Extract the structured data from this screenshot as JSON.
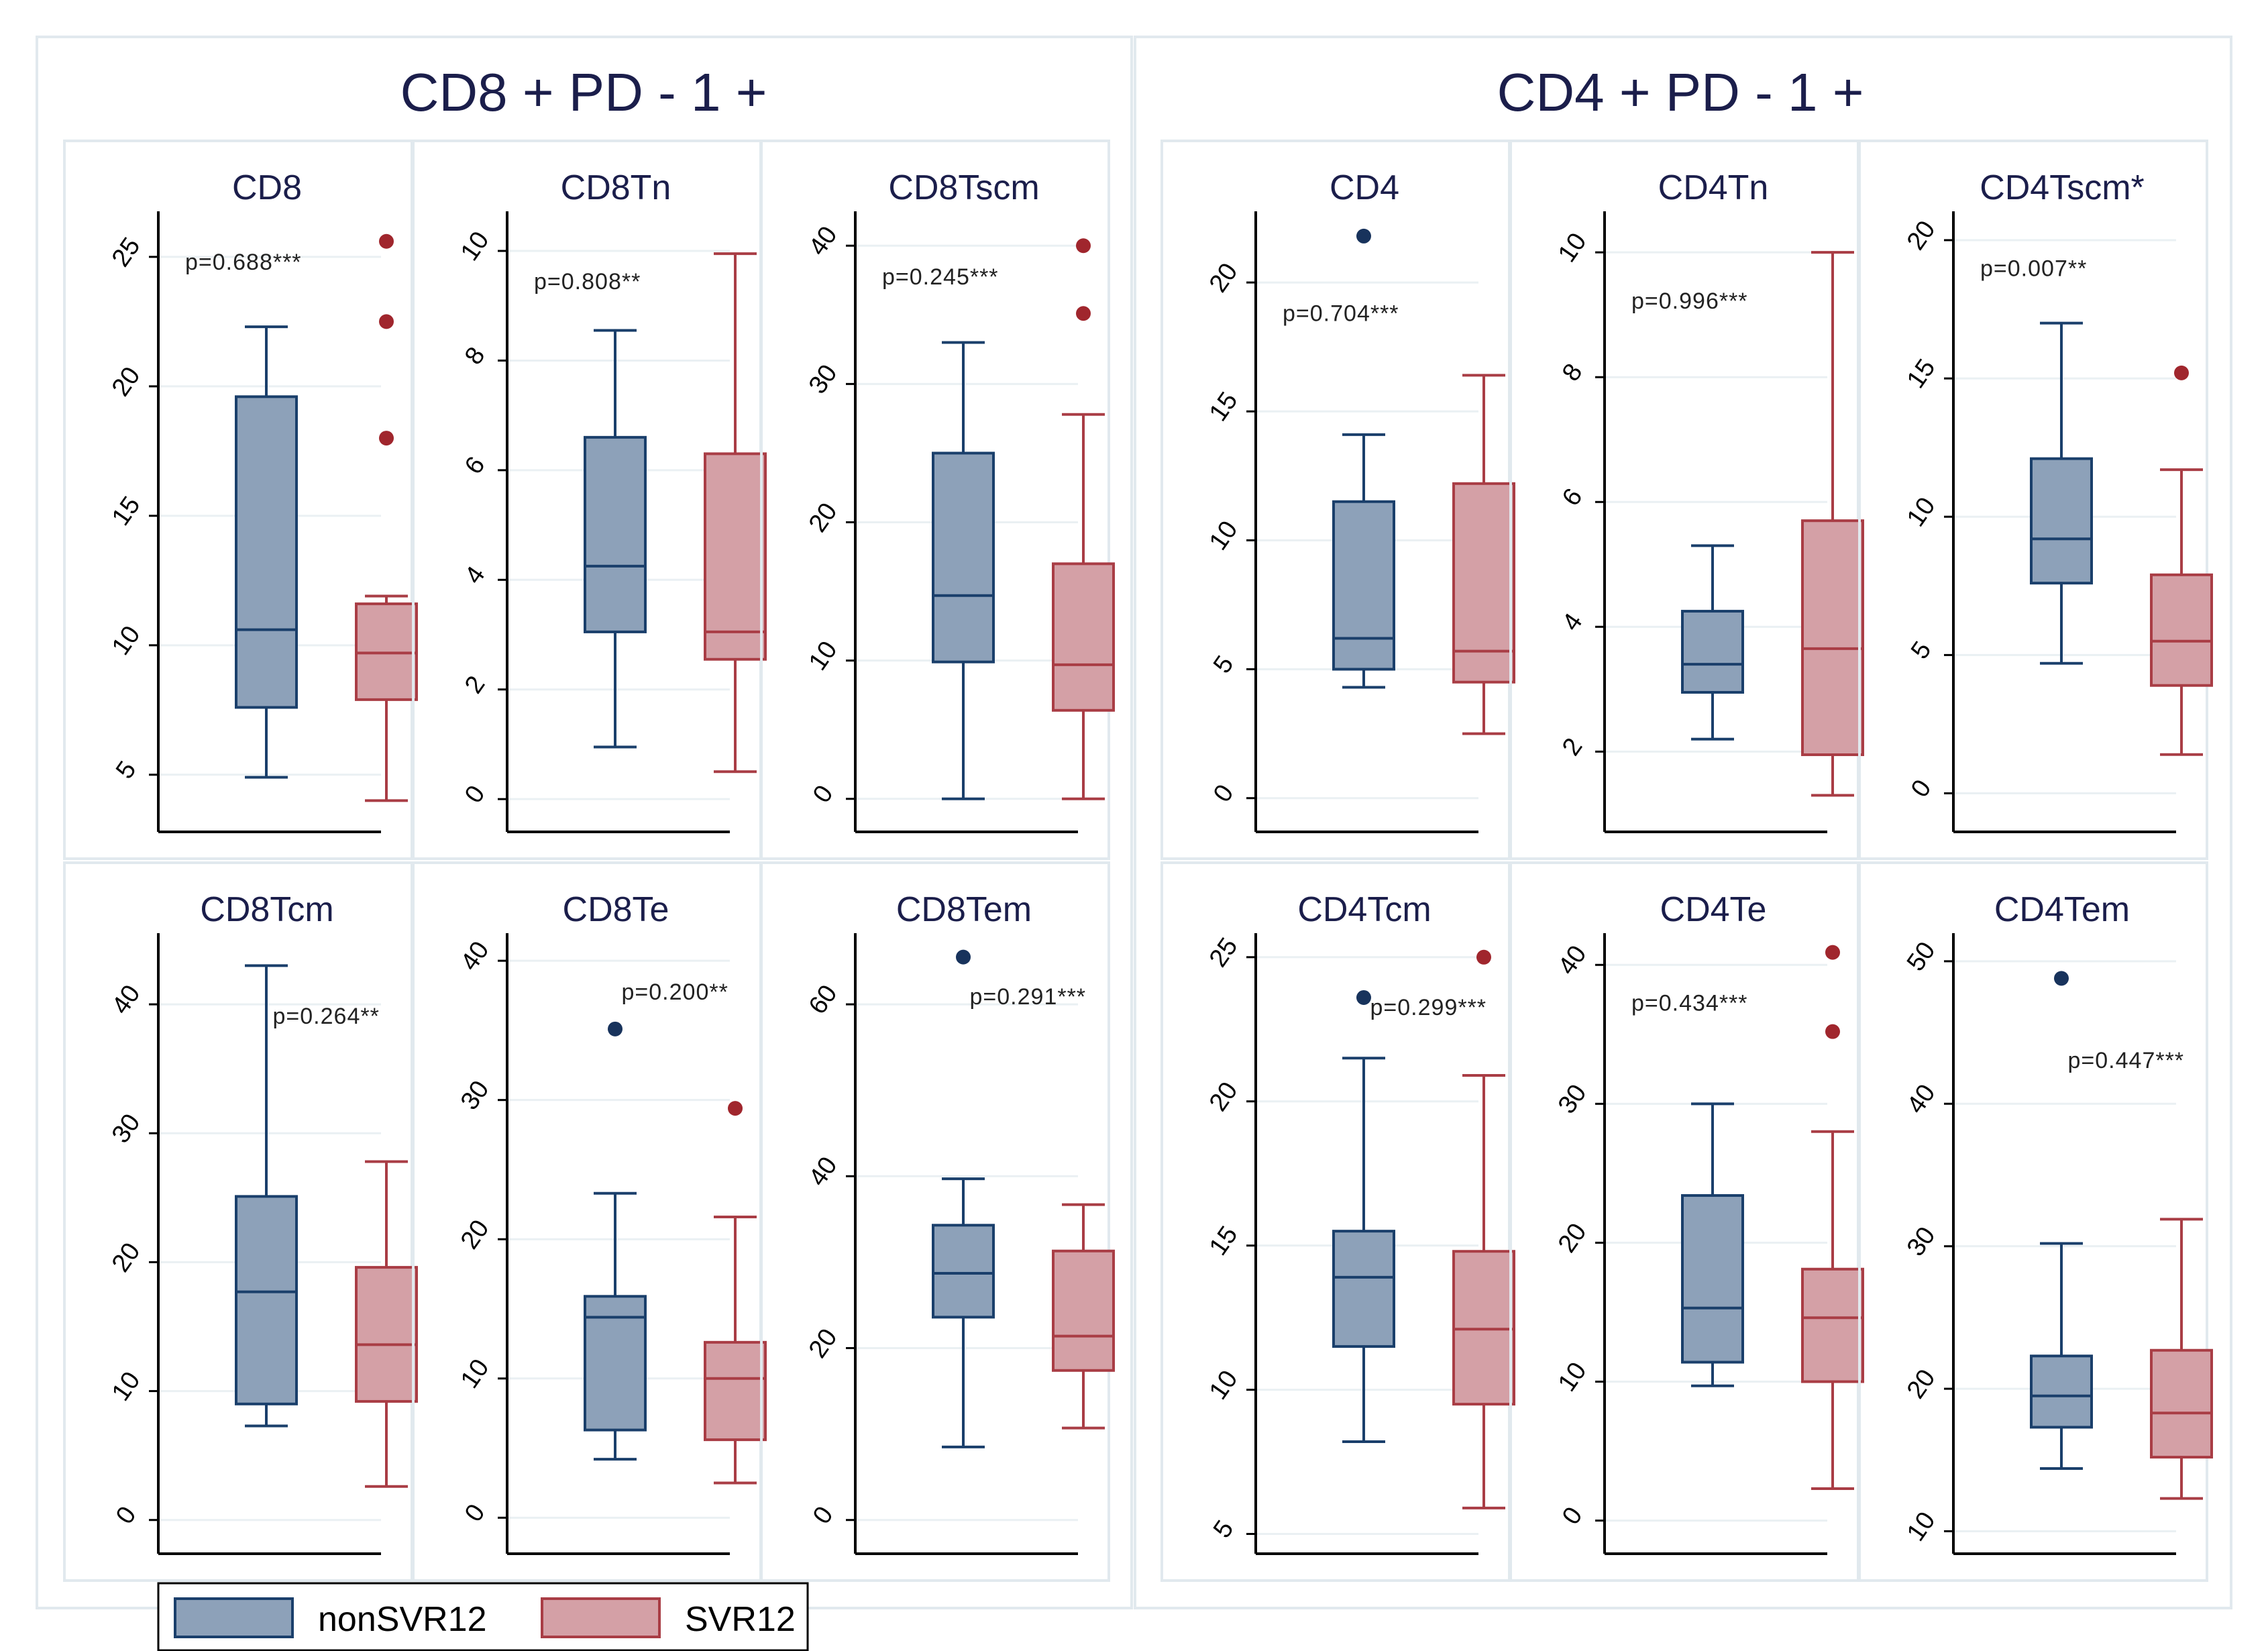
{
  "colors": {
    "nonsvr_fill": "#8DA1B9",
    "nonsvr_line": "#1A3F6B",
    "nonsvr_dot": "#18335C",
    "svr_fill": "#D4A0A6",
    "svr_line": "#A93D45",
    "svr_dot": "#A0262D",
    "title_text": "#1B1E4B",
    "frame": "#E1E9EE",
    "grid": "#EAF0F3",
    "axis": "#000000"
  },
  "group_titles": [
    "CD8 + PD - 1 +",
    "CD4 + PD - 1 +"
  ],
  "legend": {
    "items": [
      "nonSVR12",
      "SVR12"
    ]
  },
  "chart_data": [
    {
      "type": "box",
      "title": "CD8",
      "ylim": [
        3,
        26.5
      ],
      "ticks": [
        5,
        10,
        15,
        20,
        25
      ],
      "pvalue": "p=0.688***",
      "p_at": [
        1.0,
        24.5
      ],
      "series": [
        {
          "name": "nonSVR12",
          "whisker_low": 4.9,
          "q1": 7.6,
          "median": 10.6,
          "q3": 19.6,
          "whisker_high": 22.3,
          "outliers": []
        },
        {
          "name": "SVR12",
          "whisker_low": 4.0,
          "q1": 7.9,
          "median": 9.7,
          "q3": 11.6,
          "whisker_high": 11.9,
          "outliers": [
            25.6,
            22.5,
            18.0
          ]
        }
      ]
    },
    {
      "type": "box",
      "title": "CD8Tn",
      "ylim": [
        -0.5,
        10.6
      ],
      "ticks": [
        0,
        2,
        4,
        6,
        8,
        10
      ],
      "pvalue": "p=0.808**",
      "p_at": [
        1.0,
        9.3
      ],
      "series": [
        {
          "name": "nonSVR12",
          "whisker_low": 0.95,
          "q1": 3.05,
          "median": 4.25,
          "q3": 6.6,
          "whisker_high": 8.55,
          "outliers": []
        },
        {
          "name": "SVR12",
          "whisker_low": 0.5,
          "q1": 2.55,
          "median": 3.05,
          "q3": 6.3,
          "whisker_high": 9.95,
          "outliers": []
        }
      ]
    },
    {
      "type": "box",
      "title": "CD8Tscm",
      "ylim": [
        -2,
        42
      ],
      "ticks": [
        0,
        10,
        20,
        30,
        40
      ],
      "pvalue": "p=0.245***",
      "p_at": [
        1.0,
        37.2
      ],
      "series": [
        {
          "name": "nonSVR12",
          "whisker_low": 0.0,
          "q1": 9.9,
          "median": 14.7,
          "q3": 25.0,
          "whisker_high": 33.0,
          "outliers": []
        },
        {
          "name": "SVR12",
          "whisker_low": 0.0,
          "q1": 6.4,
          "median": 9.7,
          "q3": 17.0,
          "whisker_high": 27.8,
          "outliers": [
            40.0,
            35.1
          ]
        }
      ]
    },
    {
      "type": "box",
      "title": "CD4",
      "ylim": [
        -1.1,
        22.5
      ],
      "ticks": [
        0,
        5,
        10,
        15,
        20
      ],
      "pvalue": "p=0.704***",
      "p_at": [
        1.0,
        18.5
      ],
      "series": [
        {
          "name": "nonSVR12",
          "whisker_low": 4.3,
          "q1": 5.0,
          "median": 6.2,
          "q3": 11.5,
          "whisker_high": 14.1,
          "outliers": [
            21.8
          ]
        },
        {
          "name": "SVR12",
          "whisker_low": 2.5,
          "q1": 4.5,
          "median": 5.7,
          "q3": 12.2,
          "whisker_high": 16.4,
          "outliers": []
        }
      ]
    },
    {
      "type": "box",
      "title": "CD4Tn",
      "ylim": [
        0.8,
        10.55
      ],
      "ticks": [
        2,
        4,
        6,
        8,
        10
      ],
      "pvalue": "p=0.996***",
      "p_at": [
        1.0,
        9.1
      ],
      "series": [
        {
          "name": "nonSVR12",
          "whisker_low": 2.2,
          "q1": 2.95,
          "median": 3.4,
          "q3": 4.25,
          "whisker_high": 5.3,
          "outliers": []
        },
        {
          "name": "SVR12",
          "whisker_low": 1.3,
          "q1": 1.95,
          "median": 3.65,
          "q3": 5.7,
          "whisker_high": 10.0,
          "outliers": []
        }
      ]
    },
    {
      "type": "box",
      "title": "CD4Tscm*",
      "ylim": [
        -1.2,
        20.8
      ],
      "ticks": [
        0,
        5,
        10,
        15,
        20
      ],
      "pvalue": "p=0.007**",
      "p_at": [
        1.0,
        18.7
      ],
      "series": [
        {
          "name": "nonSVR12",
          "whisker_low": 4.7,
          "q1": 7.6,
          "median": 9.2,
          "q3": 12.1,
          "whisker_high": 17.0,
          "outliers": []
        },
        {
          "name": "SVR12",
          "whisker_low": 1.4,
          "q1": 3.9,
          "median": 5.5,
          "q3": 7.9,
          "whisker_high": 11.7,
          "outliers": [
            15.2
          ]
        }
      ]
    },
    {
      "type": "box",
      "title": "CD8Tcm",
      "ylim": [
        -2.2,
        45
      ],
      "ticks": [
        0,
        10,
        20,
        30,
        40
      ],
      "pvalue": "p=0.264**",
      "p_at": [
        1.9,
        38.5
      ],
      "series": [
        {
          "name": "nonSVR12",
          "whisker_low": 7.3,
          "q1": 9.0,
          "median": 17.7,
          "q3": 25.1,
          "whisker_high": 43.0,
          "outliers": []
        },
        {
          "name": "SVR12",
          "whisker_low": 2.6,
          "q1": 9.2,
          "median": 13.6,
          "q3": 19.6,
          "whisker_high": 27.8,
          "outliers": []
        }
      ]
    },
    {
      "type": "box",
      "title": "CD8Te",
      "ylim": [
        -2.2,
        41.5
      ],
      "ticks": [
        0,
        10,
        20,
        30,
        40
      ],
      "pvalue": "p=0.200**",
      "p_at": [
        1.9,
        37.2
      ],
      "series": [
        {
          "name": "nonSVR12",
          "whisker_low": 4.2,
          "q1": 6.3,
          "median": 14.4,
          "q3": 15.9,
          "whisker_high": 23.3,
          "outliers": [
            35.1
          ]
        },
        {
          "name": "SVR12",
          "whisker_low": 2.5,
          "q1": 5.6,
          "median": 10.0,
          "q3": 12.6,
          "whisker_high": 21.6,
          "outliers": [
            29.4
          ]
        }
      ]
    },
    {
      "type": "box",
      "title": "CD8Tem",
      "ylim": [
        -3.3,
        67.5
      ],
      "ticks": [
        0,
        20,
        40,
        60
      ],
      "pvalue": "p=0.291***",
      "p_at": [
        1.9,
        60.0
      ],
      "series": [
        {
          "name": "nonSVR12",
          "whisker_low": 8.5,
          "q1": 23.6,
          "median": 28.7,
          "q3": 34.3,
          "whisker_high": 39.7,
          "outliers": [
            65.5
          ]
        },
        {
          "name": "SVR12",
          "whisker_low": 10.7,
          "q1": 17.4,
          "median": 21.4,
          "q3": 31.3,
          "whisker_high": 36.7,
          "outliers": []
        }
      ]
    },
    {
      "type": "box",
      "title": "CD4Tcm",
      "ylim": [
        4.5,
        25.6
      ],
      "ticks": [
        5,
        10,
        15,
        20,
        25
      ],
      "pvalue": "p=0.299***",
      "p_at": [
        1.9,
        23.0
      ],
      "series": [
        {
          "name": "nonSVR12",
          "whisker_low": 8.2,
          "q1": 11.5,
          "median": 13.9,
          "q3": 15.5,
          "whisker_high": 21.5,
          "outliers": [
            23.6
          ]
        },
        {
          "name": "SVR12",
          "whisker_low": 5.9,
          "q1": 9.5,
          "median": 12.1,
          "q3": 14.8,
          "whisker_high": 20.9,
          "outliers": [
            25.0
          ]
        }
      ]
    },
    {
      "type": "box",
      "title": "CD4Te",
      "ylim": [
        -2,
        41.8
      ],
      "ticks": [
        0,
        10,
        20,
        30,
        40
      ],
      "pvalue": "p=0.434***",
      "p_at": [
        1.0,
        36.7
      ],
      "series": [
        {
          "name": "nonSVR12",
          "whisker_low": 9.7,
          "q1": 11.4,
          "median": 15.3,
          "q3": 23.4,
          "whisker_high": 30.0,
          "outliers": []
        },
        {
          "name": "SVR12",
          "whisker_low": 2.3,
          "q1": 10.0,
          "median": 14.6,
          "q3": 18.1,
          "whisker_high": 28.0,
          "outliers": [
            40.9,
            35.2
          ]
        }
      ]
    },
    {
      "type": "box",
      "title": "CD4Tem",
      "ylim": [
        8.8,
        51.5
      ],
      "ticks": [
        10,
        20,
        30,
        40,
        50
      ],
      "pvalue": "p=0.447***",
      "p_at": [
        1.9,
        42.5
      ],
      "series": [
        {
          "name": "nonSVR12",
          "whisker_low": 14.4,
          "q1": 17.3,
          "median": 19.5,
          "q3": 22.3,
          "whisker_high": 30.2,
          "outliers": [
            48.8
          ]
        },
        {
          "name": "SVR12",
          "whisker_low": 12.3,
          "q1": 15.2,
          "median": 18.3,
          "q3": 22.7,
          "whisker_high": 31.9,
          "outliers": []
        }
      ]
    }
  ]
}
